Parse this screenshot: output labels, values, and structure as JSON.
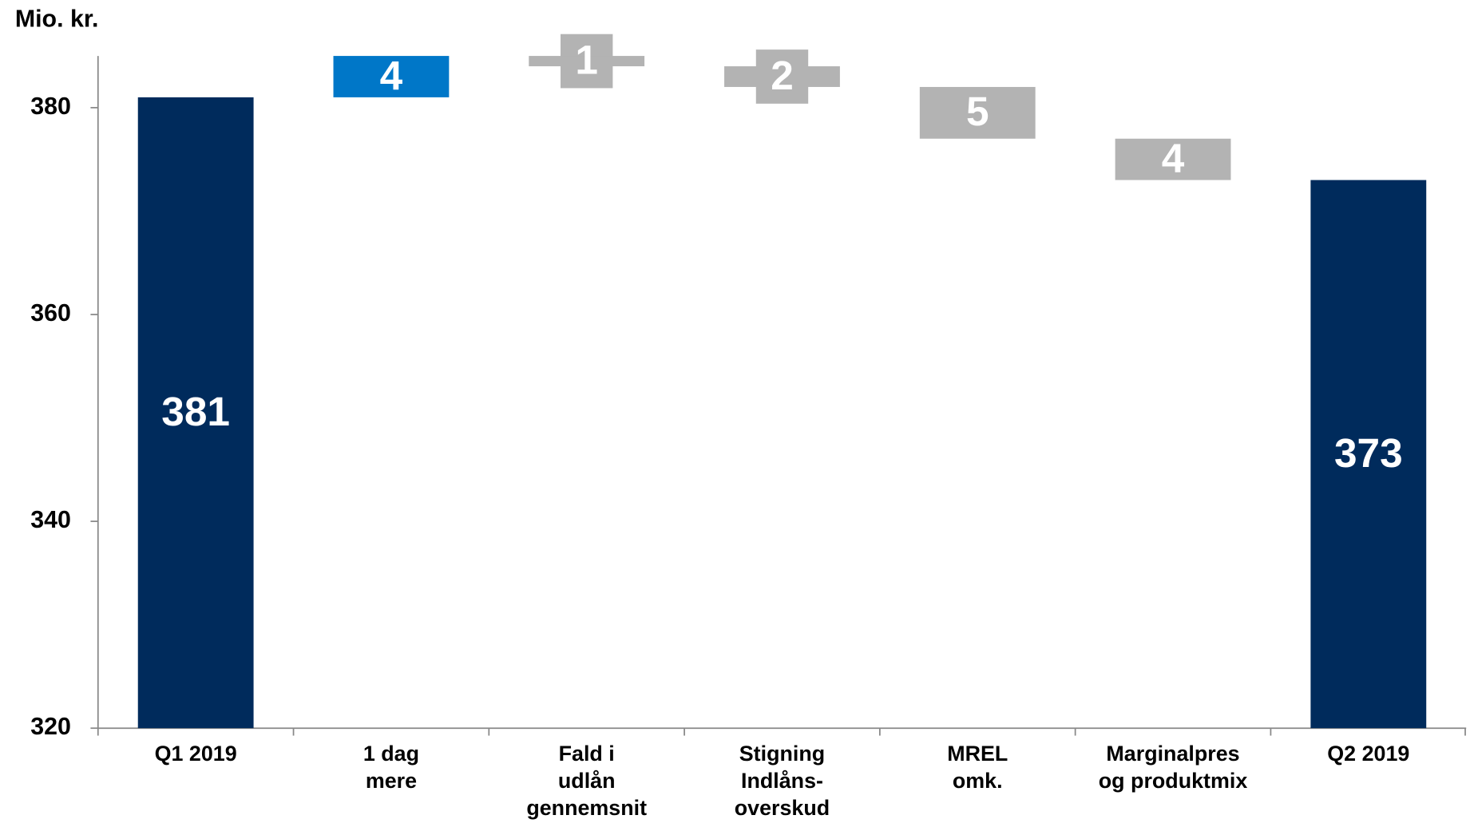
{
  "chart_data": {
    "type": "waterfall",
    "title": "Mio. kr.",
    "categories": [
      [
        "Q1 2019"
      ],
      [
        "1 dag",
        "mere"
      ],
      [
        "Fald i",
        "udlån",
        "gennemsnit"
      ],
      [
        "Stigning",
        "Indlåns-",
        "overskud"
      ],
      [
        "MREL",
        "omk."
      ],
      [
        "Marginalpres",
        "og produktmix"
      ],
      [
        "Q2 2019"
      ]
    ],
    "values": [
      381,
      4,
      -1,
      -2,
      -5,
      -4,
      373
    ],
    "value_labels": [
      "381",
      "4",
      "1",
      "2",
      "5",
      "4",
      "373"
    ],
    "total": [
      true,
      false,
      false,
      false,
      false,
      false,
      true
    ],
    "colors": {
      "total": "#002b5c",
      "increase": "#0077c8",
      "decrease": "#b3b3b3"
    },
    "ylim": [
      320,
      385
    ],
    "yticks": [
      320,
      340,
      360,
      380
    ],
    "grid": false
  }
}
